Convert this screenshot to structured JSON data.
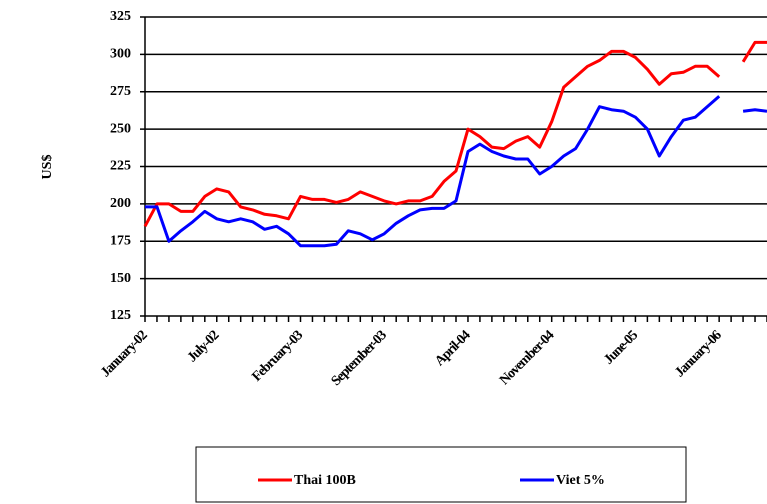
{
  "chart_data": {
    "type": "line",
    "y_label": "US$",
    "categories": [
      "January-02",
      null,
      null,
      null,
      null,
      null,
      "July-02",
      null,
      null,
      null,
      null,
      null,
      null,
      "February-03",
      null,
      null,
      null,
      null,
      null,
      null,
      "September-03",
      null,
      null,
      null,
      null,
      null,
      null,
      "April-04",
      null,
      null,
      null,
      null,
      null,
      null,
      "November-04",
      null,
      null,
      null,
      null,
      null,
      null,
      "June-05",
      null,
      null,
      null,
      null,
      null,
      null,
      "January-06",
      null,
      null,
      null,
      null
    ],
    "series": [
      {
        "name": "Thai 100B",
        "color": "#ff0000",
        "values": [
          185,
          200,
          200,
          195,
          195,
          205,
          210,
          208,
          198,
          196,
          193,
          192,
          190,
          205,
          203,
          203,
          201,
          203,
          208,
          205,
          202,
          200,
          202,
          202,
          205,
          215,
          222,
          250,
          245,
          238,
          237,
          242,
          245,
          238,
          255,
          278,
          285,
          292,
          296,
          302,
          302,
          298,
          290,
          280,
          287,
          288,
          292,
          292,
          285,
          null,
          295,
          308,
          308
        ]
      },
      {
        "name": "Viet 5%",
        "color": "#0000ff",
        "values": [
          198,
          198,
          175,
          182,
          188,
          195,
          190,
          188,
          190,
          188,
          183,
          185,
          180,
          172,
          172,
          172,
          173,
          182,
          180,
          176,
          180,
          187,
          192,
          196,
          197,
          197,
          202,
          235,
          240,
          235,
          232,
          230,
          230,
          220,
          225,
          232,
          237,
          250,
          265,
          263,
          262,
          258,
          250,
          232,
          245,
          256,
          258,
          265,
          272,
          null,
          262,
          263,
          262
        ]
      }
    ],
    "ylim": [
      125,
      325
    ],
    "yticks": [
      125,
      150,
      175,
      200,
      225,
      250,
      275,
      300,
      325
    ],
    "grid": true,
    "legend": "bottom"
  }
}
